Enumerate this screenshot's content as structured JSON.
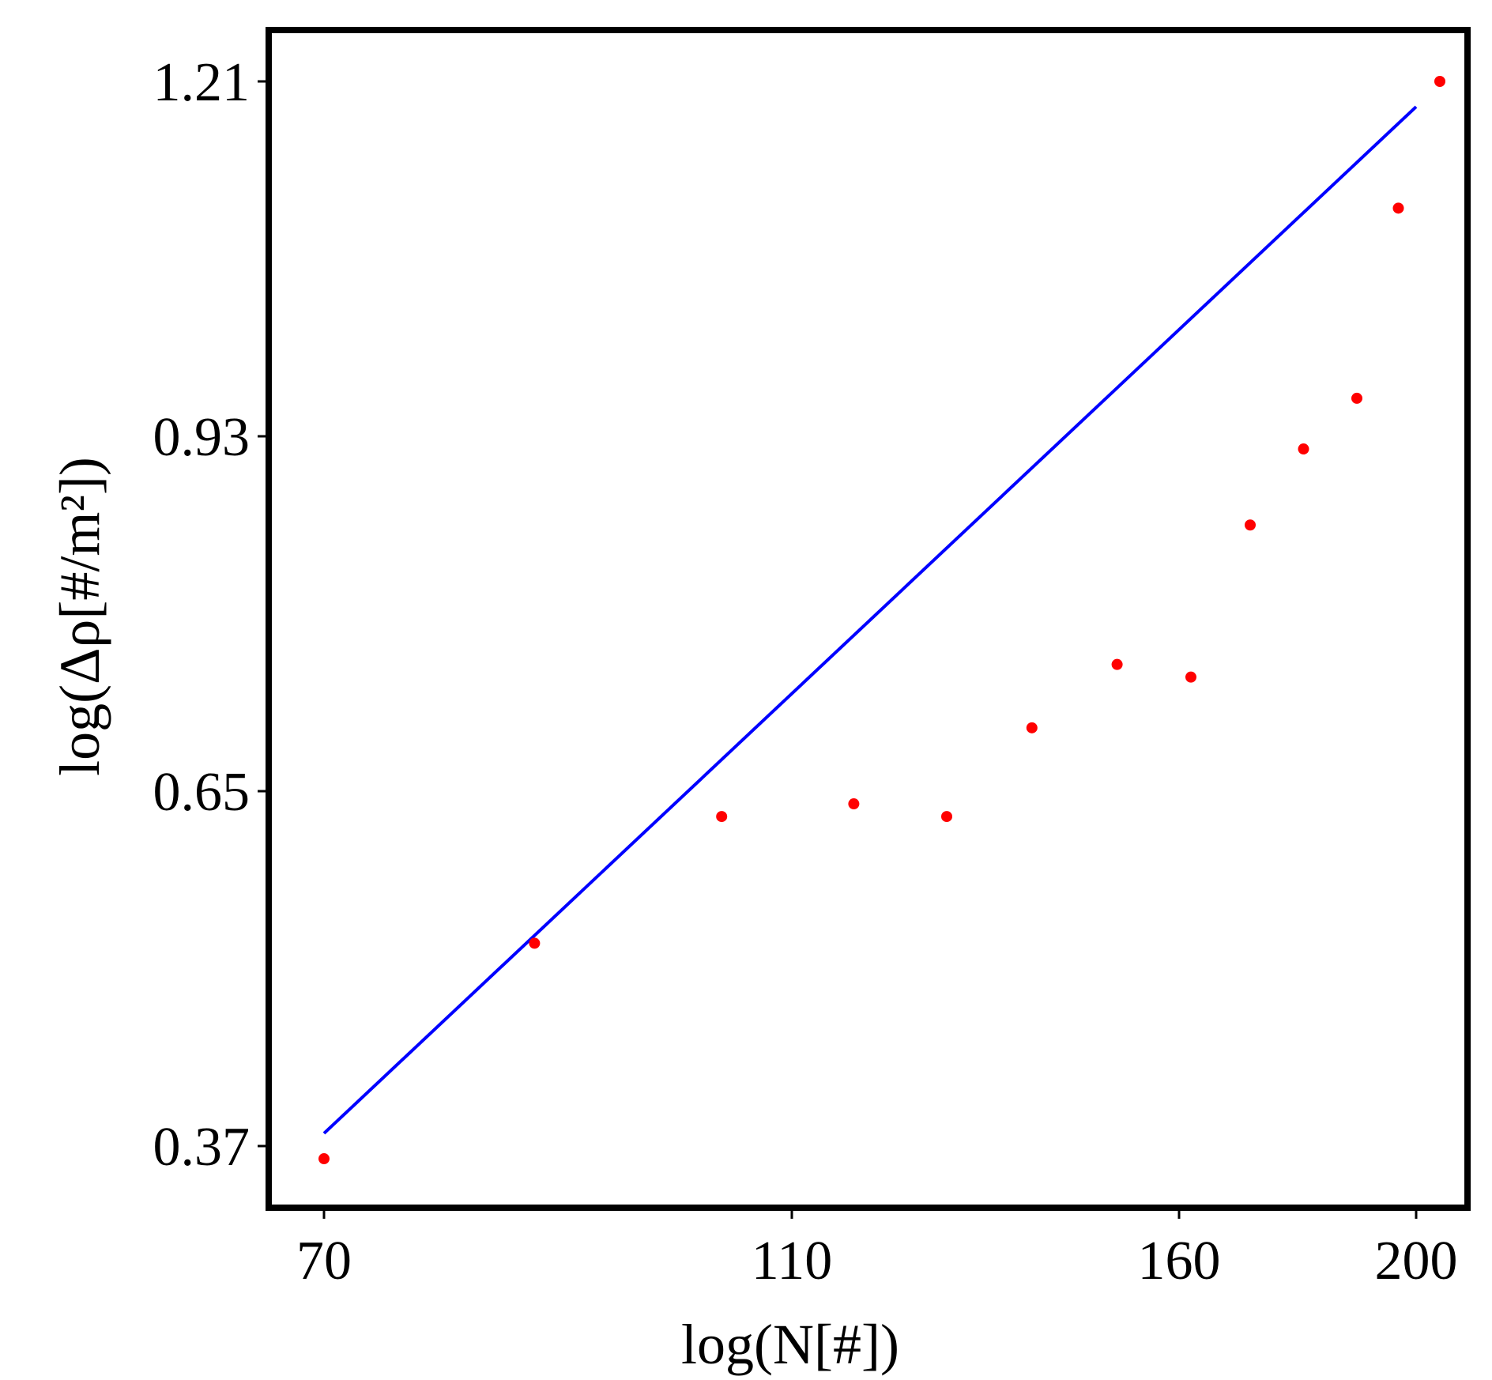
{
  "chart_data": {
    "type": "scatter",
    "title": "",
    "xlabel": "log(N[#])",
    "ylabel": "log(Δρ[#/m²])",
    "xlim": [
      63,
      205
    ],
    "ylim": [
      0.3,
      1.28
    ],
    "x_ticks": [
      70,
      110,
      160,
      200
    ],
    "y_ticks": [
      0.37,
      0.65,
      0.93,
      1.21
    ],
    "x_tick_labels": [
      "70",
      "110",
      "160",
      "200"
    ],
    "y_tick_labels": [
      "0.37",
      "0.65",
      "0.93",
      "1.21"
    ],
    "grid": false,
    "legend": "none",
    "series": [
      {
        "kind": "points",
        "color": "#ff0000",
        "x": [
          70,
          88,
          104,
          118,
          130,
          141,
          152,
          162,
          172,
          181,
          190,
          197,
          204
        ],
        "y": [
          0.36,
          0.53,
          0.63,
          0.64,
          0.63,
          0.7,
          0.75,
          0.74,
          0.86,
          0.92,
          0.96,
          1.11,
          1.21
        ]
      },
      {
        "kind": "fit-line",
        "color": "#0000ff",
        "x": [
          70,
          200
        ],
        "y": [
          0.38,
          1.19
        ]
      }
    ]
  }
}
